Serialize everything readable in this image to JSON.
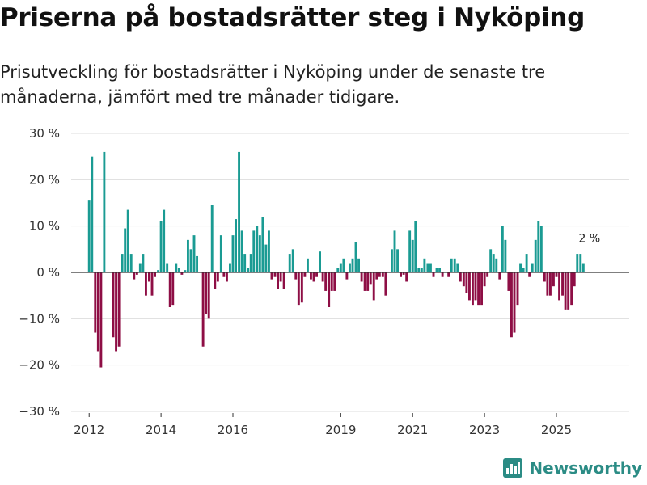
{
  "header": {
    "title": "Priserna på bostadsrätter steg i Nyköping",
    "subtitle": "Prisutveckling för bostadsrätter i Nyköping under de senaste tre månaderna, jämfört med tre månader tidigare."
  },
  "branding": {
    "name": "Newsworthy",
    "icon": "newsworthy-logo-icon",
    "color": "#2b8c85"
  },
  "chart_data": {
    "type": "bar",
    "title": "",
    "xlabel": "",
    "ylabel": "",
    "ylim": [
      -30,
      30
    ],
    "yticks": [
      -30,
      -20,
      -10,
      0,
      10,
      20,
      30
    ],
    "ytick_labels": [
      "−30 %",
      "−20 %",
      "−10 %",
      "0 %",
      "10 %",
      "20 %",
      "30 %"
    ],
    "x_range": [
      2011.5,
      2026.8
    ],
    "xticks": [
      2012,
      2014,
      2016,
      2019,
      2021,
      2023,
      2025
    ],
    "xtick_labels": [
      "2012",
      "2014",
      "2016",
      "2019",
      "2021",
      "2023",
      "2025"
    ],
    "positive_color": "#1a9b93",
    "negative_color": "#8e0e45",
    "annotation": {
      "label": "2 %",
      "x": 2025.92,
      "value": 2
    },
    "series": [
      {
        "name": "Prisutveckling",
        "points": [
          [
            2012.0,
            15.5
          ],
          [
            2012.08,
            25.0
          ],
          [
            2012.17,
            -13.0
          ],
          [
            2012.25,
            -17.0
          ],
          [
            2012.33,
            -20.5
          ],
          [
            2012.42,
            26.0
          ],
          [
            2012.67,
            -14.0
          ],
          [
            2012.75,
            -17.0
          ],
          [
            2012.83,
            -16.0
          ],
          [
            2012.92,
            4.0
          ],
          [
            2013.0,
            9.5
          ],
          [
            2013.08,
            13.5
          ],
          [
            2013.17,
            4.0
          ],
          [
            2013.25,
            -1.5
          ],
          [
            2013.33,
            -0.5
          ],
          [
            2013.42,
            2.0
          ],
          [
            2013.5,
            4.0
          ],
          [
            2013.58,
            -5.0
          ],
          [
            2013.67,
            -2.0
          ],
          [
            2013.75,
            -5.0
          ],
          [
            2013.83,
            -1.0
          ],
          [
            2013.92,
            0.5
          ],
          [
            2014.0,
            11.0
          ],
          [
            2014.08,
            13.5
          ],
          [
            2014.17,
            2.0
          ],
          [
            2014.25,
            -7.5
          ],
          [
            2014.33,
            -7.0
          ],
          [
            2014.42,
            2.0
          ],
          [
            2014.5,
            1.0
          ],
          [
            2014.58,
            -0.5
          ],
          [
            2014.67,
            0.5
          ],
          [
            2014.75,
            7.0
          ],
          [
            2014.83,
            5.0
          ],
          [
            2014.92,
            8.0
          ],
          [
            2015.0,
            3.5
          ],
          [
            2015.17,
            -16.0
          ],
          [
            2015.25,
            -9.0
          ],
          [
            2015.33,
            -10.0
          ],
          [
            2015.42,
            14.5
          ],
          [
            2015.5,
            -3.5
          ],
          [
            2015.58,
            -2.0
          ],
          [
            2015.67,
            8.0
          ],
          [
            2015.75,
            -1.0
          ],
          [
            2015.83,
            -2.0
          ],
          [
            2015.92,
            2.0
          ],
          [
            2016.0,
            8.0
          ],
          [
            2016.08,
            11.5
          ],
          [
            2016.17,
            26.0
          ],
          [
            2016.25,
            9.0
          ],
          [
            2016.33,
            4.0
          ],
          [
            2016.42,
            1.0
          ],
          [
            2016.5,
            4.0
          ],
          [
            2016.58,
            9.0
          ],
          [
            2016.67,
            10.0
          ],
          [
            2016.75,
            8.0
          ],
          [
            2016.83,
            12.0
          ],
          [
            2016.92,
            6.0
          ],
          [
            2017.0,
            9.0
          ],
          [
            2017.08,
            -1.5
          ],
          [
            2017.17,
            -1.0
          ],
          [
            2017.25,
            -3.5
          ],
          [
            2017.33,
            -2.0
          ],
          [
            2017.42,
            -3.5
          ],
          [
            2017.58,
            4.0
          ],
          [
            2017.67,
            5.0
          ],
          [
            2017.75,
            -1.5
          ],
          [
            2017.83,
            -7.0
          ],
          [
            2017.92,
            -6.5
          ],
          [
            2018.0,
            -1.0
          ],
          [
            2018.08,
            3.0
          ],
          [
            2018.17,
            -1.5
          ],
          [
            2018.25,
            -2.0
          ],
          [
            2018.33,
            -1.0
          ],
          [
            2018.42,
            4.5
          ],
          [
            2018.5,
            -2.0
          ],
          [
            2018.58,
            -4.0
          ],
          [
            2018.67,
            -7.5
          ],
          [
            2018.75,
            -4.0
          ],
          [
            2018.83,
            -4.0
          ],
          [
            2018.92,
            1.0
          ],
          [
            2019.0,
            2.0
          ],
          [
            2019.08,
            3.0
          ],
          [
            2019.17,
            -1.5
          ],
          [
            2019.25,
            2.0
          ],
          [
            2019.33,
            3.0
          ],
          [
            2019.42,
            6.5
          ],
          [
            2019.5,
            3.0
          ],
          [
            2019.58,
            -2.0
          ],
          [
            2019.67,
            -4.0
          ],
          [
            2019.75,
            -4.0
          ],
          [
            2019.83,
            -2.5
          ],
          [
            2019.92,
            -6.0
          ],
          [
            2020.0,
            -1.5
          ],
          [
            2020.08,
            -1.0
          ],
          [
            2020.17,
            -1.0
          ],
          [
            2020.25,
            -5.0
          ],
          [
            2020.42,
            5.0
          ],
          [
            2020.5,
            9.0
          ],
          [
            2020.58,
            5.0
          ],
          [
            2020.67,
            -1.0
          ],
          [
            2020.75,
            -0.5
          ],
          [
            2020.83,
            -2.0
          ],
          [
            2020.92,
            9.0
          ],
          [
            2021.0,
            7.0
          ],
          [
            2021.08,
            11.0
          ],
          [
            2021.17,
            1.0
          ],
          [
            2021.25,
            1.0
          ],
          [
            2021.33,
            3.0
          ],
          [
            2021.42,
            2.0
          ],
          [
            2021.5,
            2.0
          ],
          [
            2021.58,
            -1.0
          ],
          [
            2021.67,
            1.0
          ],
          [
            2021.75,
            1.0
          ],
          [
            2021.83,
            -1.0
          ],
          [
            2022.0,
            -1.0
          ],
          [
            2022.08,
            3.0
          ],
          [
            2022.17,
            3.0
          ],
          [
            2022.25,
            2.0
          ],
          [
            2022.33,
            -2.0
          ],
          [
            2022.42,
            -3.0
          ],
          [
            2022.5,
            -4.5
          ],
          [
            2022.58,
            -6.0
          ],
          [
            2022.67,
            -7.0
          ],
          [
            2022.75,
            -6.0
          ],
          [
            2022.83,
            -7.0
          ],
          [
            2022.92,
            -7.0
          ],
          [
            2023.0,
            -3.0
          ],
          [
            2023.08,
            -1.0
          ],
          [
            2023.17,
            5.0
          ],
          [
            2023.25,
            4.0
          ],
          [
            2023.33,
            3.0
          ],
          [
            2023.42,
            -1.5
          ],
          [
            2023.5,
            10.0
          ],
          [
            2023.58,
            7.0
          ],
          [
            2023.67,
            -4.0
          ],
          [
            2023.75,
            -14.0
          ],
          [
            2023.83,
            -13.0
          ],
          [
            2023.92,
            -7.0
          ],
          [
            2024.0,
            2.0
          ],
          [
            2024.08,
            1.0
          ],
          [
            2024.17,
            4.0
          ],
          [
            2024.25,
            -1.0
          ],
          [
            2024.33,
            2.0
          ],
          [
            2024.42,
            7.0
          ],
          [
            2024.5,
            11.0
          ],
          [
            2024.58,
            10.0
          ],
          [
            2024.67,
            -2.0
          ],
          [
            2024.75,
            -5.0
          ],
          [
            2024.83,
            -5.0
          ],
          [
            2024.92,
            -3.0
          ],
          [
            2025.0,
            -1.0
          ],
          [
            2025.08,
            -6.0
          ],
          [
            2025.17,
            -5.0
          ],
          [
            2025.25,
            -8.0
          ],
          [
            2025.33,
            -8.0
          ],
          [
            2025.42,
            -7.0
          ],
          [
            2025.5,
            -3.0
          ],
          [
            2025.58,
            4.0
          ],
          [
            2025.67,
            4.0
          ],
          [
            2025.75,
            2.0
          ]
        ]
      }
    ]
  }
}
